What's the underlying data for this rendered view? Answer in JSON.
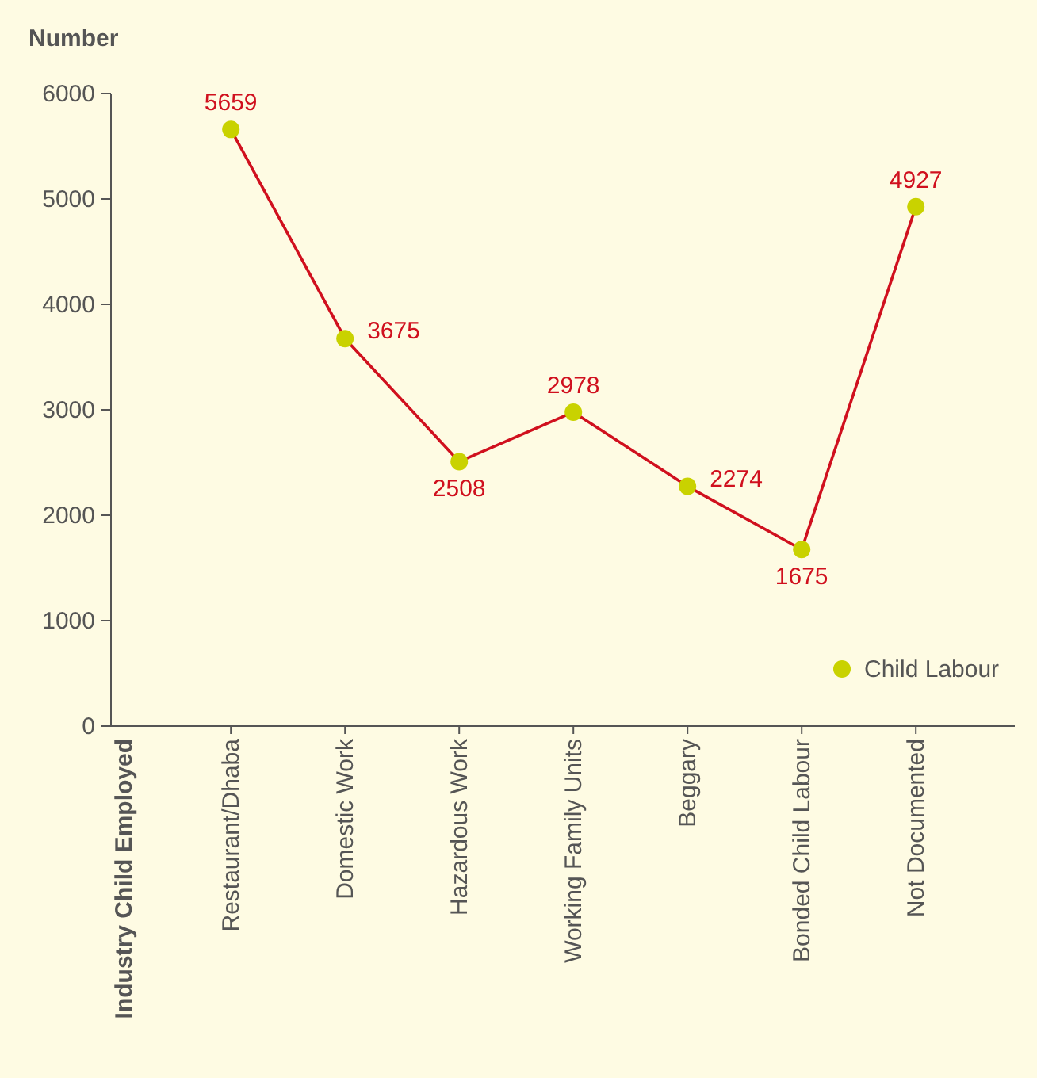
{
  "chart_data": {
    "type": "line",
    "ylabel": "Number",
    "annotations": [
      "Industry Child Employed"
    ],
    "categories": [
      "Restaurant/Dhaba",
      "Domestic Work",
      "Hazardous Work",
      "Working Family Units",
      "Beggary",
      "Bonded Child Labour",
      "Not Documented"
    ],
    "series": [
      {
        "name": "Child Labour",
        "color": "#d0101e",
        "colors": [
          "#c9d200",
          "#c9d200",
          "#c9d200",
          "#c9d200",
          "#c9d200",
          "#c9d200",
          "#c9d200"
        ],
        "values": [
          5659,
          3675,
          2508,
          2978,
          2274,
          1675,
          4927
        ]
      }
    ],
    "ylim": [
      0,
      6000
    ],
    "yticks": [
      0,
      1000,
      2000,
      3000,
      4000,
      5000,
      6000
    ],
    "grid": false,
    "legend": "bottom right",
    "marker": "circle",
    "line_style": "solid",
    "data_labels": true
  }
}
